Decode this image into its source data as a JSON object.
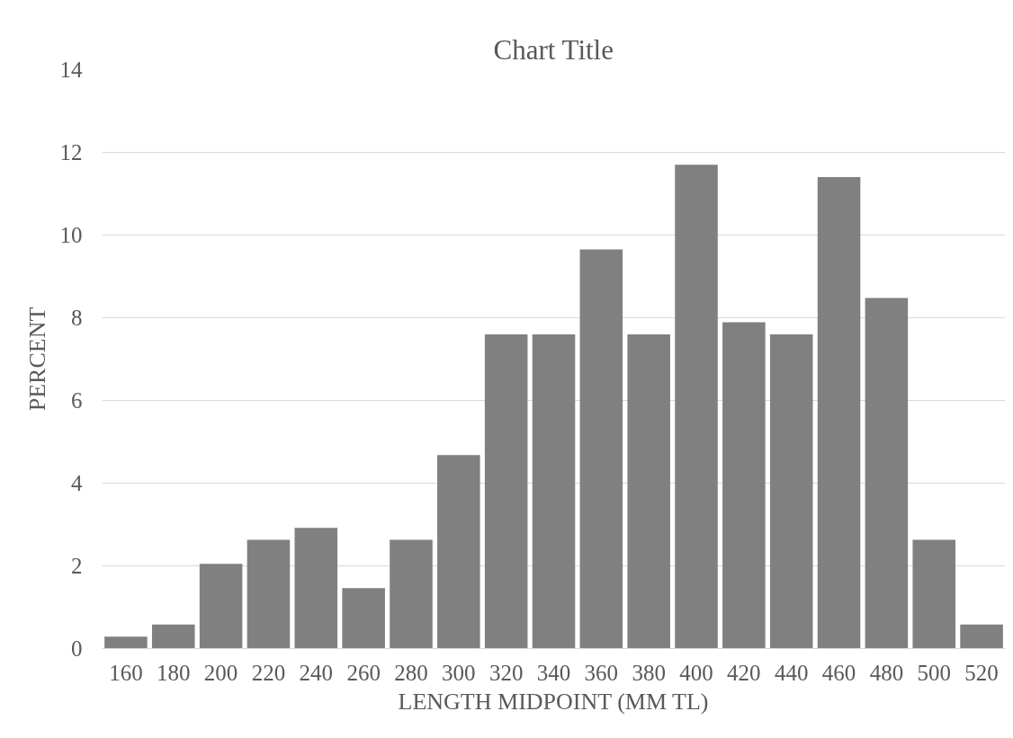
{
  "chart_data": {
    "type": "bar",
    "title": "Chart Title",
    "xlabel": "LENGTH MIDPOINT (MM TL)",
    "ylabel": "PERCENT",
    "categories": [
      "160",
      "180",
      "200",
      "220",
      "240",
      "260",
      "280",
      "300",
      "320",
      "340",
      "360",
      "380",
      "400",
      "420",
      "440",
      "460",
      "480",
      "500",
      "520"
    ],
    "values": [
      0.29,
      0.58,
      2.05,
      2.63,
      2.92,
      1.46,
      2.63,
      4.68,
      7.6,
      7.6,
      9.65,
      7.6,
      11.7,
      7.89,
      7.6,
      11.4,
      8.48,
      2.63,
      0.58
    ],
    "color": "#808080",
    "ylim": [
      0,
      14
    ],
    "yticks": [
      0,
      2,
      4,
      6,
      8,
      10,
      12,
      14
    ],
    "grid": "y"
  }
}
